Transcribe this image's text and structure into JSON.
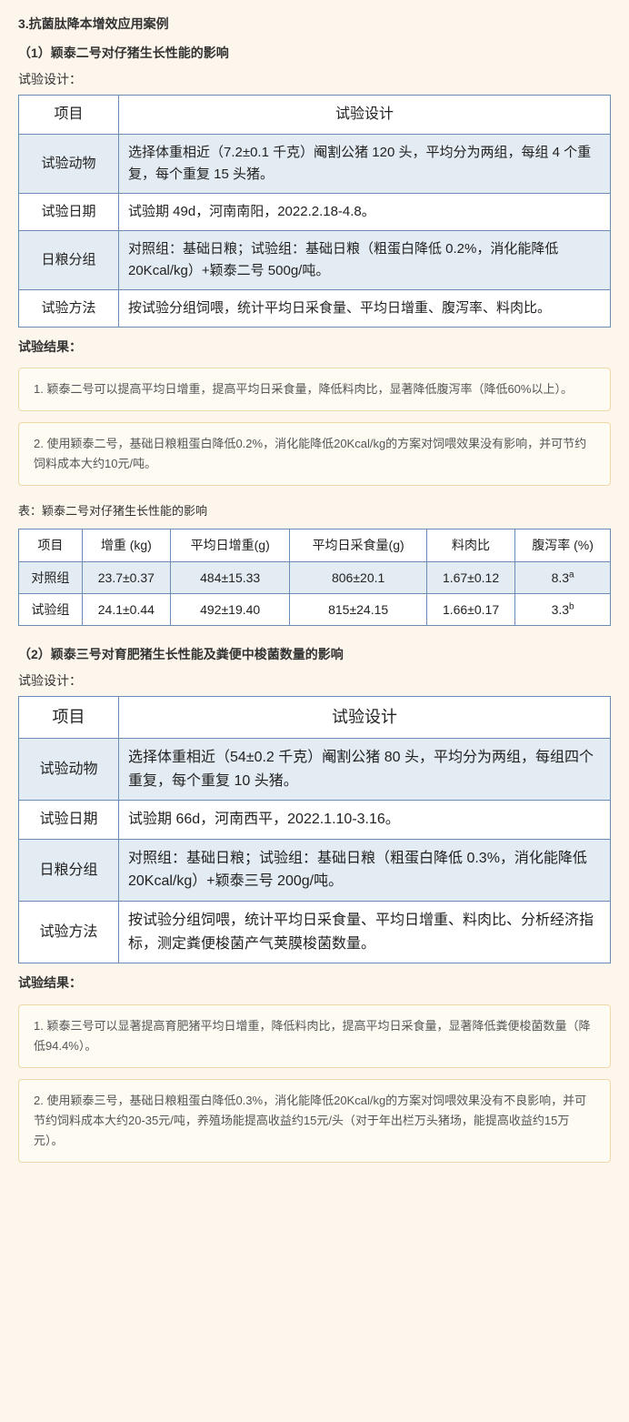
{
  "heading3": "3.抗菌肽降本增效应用案例",
  "case1": {
    "title": "（1）颖泰二号对仔猪生长性能的影响",
    "design_label": "试验设计：",
    "design_table": {
      "header_col1": "项目",
      "header_col2": "试验设计",
      "rows": [
        {
          "label": "试验动物",
          "text": "选择体重相近（7.2±0.1 千克）阉割公猪 120 头，平均分为两组，每组 4 个重复，每个重复 15 头猪。"
        },
        {
          "label": "试验日期",
          "text": "试验期 49d，河南南阳，2022.2.18-4.8。"
        },
        {
          "label": "日粮分组",
          "text": "对照组：基础日粮；试验组：基础日粮（粗蛋白降低 0.2%，消化能降低 20Kcal/kg）+颖泰二号 500g/吨。"
        },
        {
          "label": "试验方法",
          "text": "按试验分组饲喂，统计平均日采食量、平均日增重、腹泻率、料肉比。"
        }
      ]
    },
    "result_label": "试验结果：",
    "result1": "1. 颖泰二号可以提高平均日增重，提高平均日采食量，降低料肉比，显著降低腹泻率（降低60%以上）。",
    "result2": "2. 使用颖泰二号，基础日粮粗蛋白降低0.2%，消化能降低20Kcal/kg的方案对饲喂效果没有影响，并可节约饲料成本大约10元/吨。",
    "data_caption": "表：颖泰二号对仔猪生长性能的影响",
    "data_table": {
      "columns": [
        "项目",
        "增重 (kg)",
        "平均日增重(g)",
        "平均日采食量(g)",
        "料肉比",
        "腹泻率 (%)"
      ],
      "rows": [
        {
          "label": "对照组",
          "c1": "23.7±0.37",
          "c2": "484±15.33",
          "c3": "806±20.1",
          "c4": "1.67±0.12",
          "c5": "8.3",
          "sup": "a"
        },
        {
          "label": "试验组",
          "c1": "24.1±0.44",
          "c2": "492±19.40",
          "c3": "815±24.15",
          "c4": "1.66±0.17",
          "c5": "3.3",
          "sup": "b"
        }
      ]
    }
  },
  "case2": {
    "title": "（2）颖泰三号对育肥猪生长性能及粪便中梭菌数量的影响",
    "design_label": "试验设计：",
    "design_table": {
      "header_col1": "项目",
      "header_col2": "试验设计",
      "rows": [
        {
          "label": "试验动物",
          "text": "选择体重相近（54±0.2 千克）阉割公猪 80 头，平均分为两组，每组四个重复，每个重复 10 头猪。"
        },
        {
          "label": "试验日期",
          "text": "试验期 66d，河南西平，2022.1.10-3.16。"
        },
        {
          "label": "日粮分组",
          "text": "对照组：基础日粮；试验组：基础日粮（粗蛋白降低 0.3%，消化能降低 20Kcal/kg）+颖泰三号 200g/吨。"
        },
        {
          "label": "试验方法",
          "text": "按试验分组饲喂，统计平均日采食量、平均日增重、料肉比、分析经济指标，测定粪便梭菌产气荚膜梭菌数量。"
        }
      ]
    },
    "result_label": "试验结果：",
    "result1": "1. 颖泰三号可以显著提高育肥猪平均日增重，降低料肉比，提高平均日采食量，显著降低粪便梭菌数量（降低94.4%）。",
    "result2": "2. 使用颖泰三号，基础日粮粗蛋白降低0.3%，消化能降低20Kcal/kg的方案对饲喂效果没有不良影响，并可节约饲料成本大约20-35元/吨，养殖场能提高收益约15元/头（对于年出栏万头猪场，能提高收益约15万元）。"
  }
}
